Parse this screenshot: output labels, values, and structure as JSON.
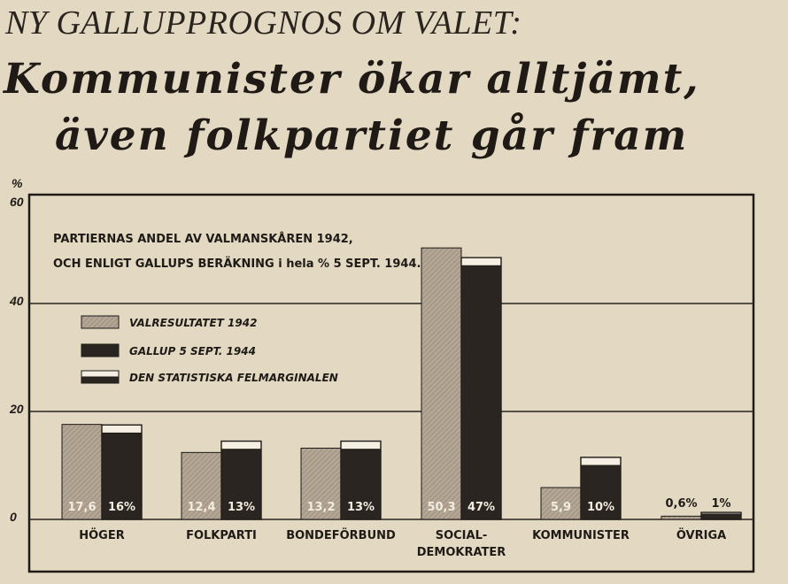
{
  "header": {
    "kicker": "NY GALLUPPROGNOS OM VALET:",
    "headline_line1": "Kommunister ökar alltjämt,",
    "headline_line2": "även folkpartiet går fram"
  },
  "chart_data": {
    "type": "bar",
    "ylabel": "%",
    "ylim": [
      0,
      60
    ],
    "yticks": [
      "0",
      "20",
      "40",
      "60"
    ],
    "note_line1": "PARTIERNAS ANDEL AV VALMANSKÅREN 1942,",
    "note_line2": "OCH ENLIGT GALLUPS BERÄKNING i hela % 5 SEPT. 1944.",
    "categories": [
      "HÖGER",
      "FOLKPARTI",
      "BONDEFÖRBUND",
      "SOCIAL-\nDEMOKRATER",
      "KOMMUNISTER",
      "ÖVRIGA"
    ],
    "series": [
      {
        "name": "VALRESULTATET 1942",
        "values": [
          17.6,
          12.4,
          13.2,
          50.3,
          5.9,
          0.6
        ],
        "labels": [
          "17,6",
          "12,4",
          "13,2",
          "50,3",
          "5,9",
          "0,6%"
        ]
      },
      {
        "name": "GALLUP 5 SEPT. 1944",
        "values": [
          16,
          13,
          13,
          47,
          10,
          1
        ],
        "labels": [
          "16%",
          "13%",
          "13%",
          "47%",
          "10%",
          "1%"
        ]
      }
    ],
    "error_margin_label": "DEN STATISTISKA FELMARGINALEN",
    "error_margin_upper": [
      17.5,
      14.5,
      14.5,
      48.5,
      11.5,
      1.3
    ],
    "colors": {
      "valresultat": "#b3a695",
      "gallup": "#2b2522",
      "margin": "#f4efe2",
      "frame": "#1e1a16"
    },
    "grid": true,
    "legend": "top-left"
  }
}
